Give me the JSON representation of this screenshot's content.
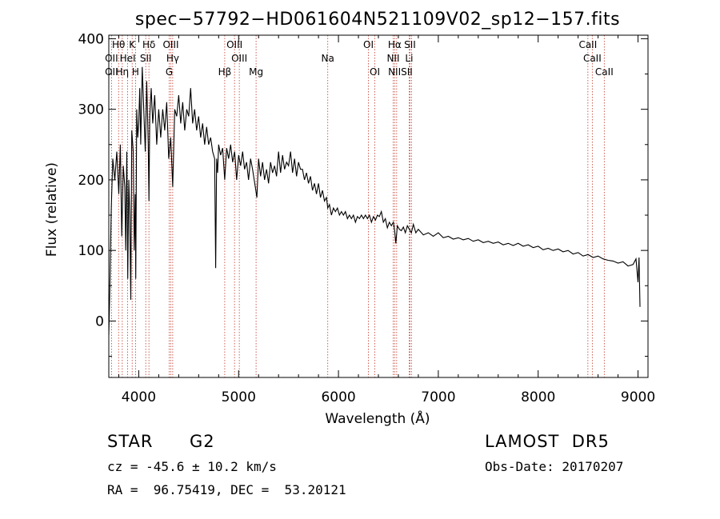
{
  "chart_data": {
    "type": "line",
    "title": "spec−57792−HD061604N521109V02_sp12−157.fits",
    "xlabel": "Wavelength (Å)",
    "ylabel": "Flux (relative)",
    "xlim": [
      3700,
      9100
    ],
    "ylim": [
      -80,
      405
    ],
    "xticks": [
      4000,
      5000,
      6000,
      7000,
      8000,
      9000
    ],
    "yticks": [
      0,
      100,
      200,
      300,
      400
    ],
    "grid": false,
    "line_color": "#000000",
    "marker_color": "#c0392b",
    "series": [
      {
        "x": [
          3700,
          3710,
          3725,
          3740,
          3760,
          3780,
          3800,
          3815,
          3830,
          3845,
          3860,
          3870,
          3880,
          3890,
          3900,
          3910,
          3920,
          3930,
          3945,
          3955,
          3965,
          3970,
          3980,
          3990,
          4000,
          4010,
          4020,
          4035,
          4050,
          4065,
          4080,
          4095,
          4102,
          4110,
          4125,
          4140,
          4160,
          4180,
          4200,
          4220,
          4240,
          4260,
          4280,
          4300,
          4320,
          4340,
          4360,
          4380,
          4400,
          4420,
          4440,
          4460,
          4480,
          4500,
          4520,
          4540,
          4560,
          4580,
          4600,
          4620,
          4640,
          4660,
          4680,
          4700,
          4720,
          4740,
          4760,
          4770,
          4780,
          4790,
          4800,
          4820,
          4840,
          4861,
          4880,
          4900,
          4920,
          4940,
          4960,
          4980,
          5000,
          5020,
          5040,
          5060,
          5080,
          5100,
          5120,
          5140,
          5167,
          5183,
          5200,
          5220,
          5240,
          5260,
          5280,
          5300,
          5320,
          5340,
          5360,
          5380,
          5400,
          5420,
          5440,
          5460,
          5480,
          5500,
          5520,
          5540,
          5560,
          5580,
          5600,
          5620,
          5640,
          5660,
          5680,
          5700,
          5720,
          5740,
          5760,
          5780,
          5800,
          5820,
          5840,
          5860,
          5880,
          5893,
          5910,
          5930,
          5950,
          5970,
          5990,
          6010,
          6030,
          6050,
          6070,
          6090,
          6110,
          6130,
          6150,
          6170,
          6190,
          6210,
          6230,
          6250,
          6270,
          6290,
          6310,
          6330,
          6350,
          6370,
          6390,
          6410,
          6430,
          6450,
          6470,
          6490,
          6510,
          6530,
          6550,
          6563,
          6575,
          6590,
          6610,
          6630,
          6650,
          6670,
          6690,
          6710,
          6730,
          6750,
          6775,
          6800,
          6850,
          6900,
          6950,
          7000,
          7050,
          7100,
          7150,
          7200,
          7250,
          7300,
          7350,
          7400,
          7450,
          7500,
          7550,
          7600,
          7650,
          7700,
          7750,
          7800,
          7850,
          7900,
          7950,
          8000,
          8050,
          8100,
          8150,
          8200,
          8250,
          8300,
          8350,
          8400,
          8450,
          8500,
          8550,
          8600,
          8650,
          8700,
          8750,
          8800,
          8850,
          8900,
          8950,
          8980,
          9000,
          9010,
          9020
        ],
        "y": [
          -20,
          40,
          160,
          230,
          200,
          240,
          180,
          250,
          120,
          220,
          190,
          100,
          240,
          60,
          200,
          150,
          30,
          270,
          240,
          100,
          180,
          60,
          300,
          260,
          280,
          330,
          250,
          360,
          300,
          240,
          340,
          250,
          170,
          290,
          330,
          280,
          320,
          250,
          300,
          260,
          300,
          270,
          310,
          230,
          260,
          190,
          300,
          290,
          320,
          280,
          310,
          270,
          300,
          290,
          330,
          280,
          300,
          270,
          290,
          260,
          280,
          250,
          275,
          250,
          260,
          240,
          230,
          75,
          230,
          210,
          250,
          235,
          245,
          200,
          245,
          230,
          250,
          225,
          240,
          200,
          235,
          220,
          240,
          215,
          225,
          200,
          230,
          215,
          190,
          175,
          230,
          205,
          225,
          200,
          215,
          195,
          225,
          210,
          220,
          205,
          240,
          210,
          235,
          215,
          225,
          220,
          240,
          210,
          230,
          205,
          225,
          215,
          215,
          200,
          210,
          195,
          205,
          185,
          195,
          180,
          195,
          175,
          185,
          170,
          175,
          160,
          165,
          150,
          160,
          155,
          160,
          150,
          155,
          150,
          155,
          145,
          150,
          145,
          150,
          140,
          148,
          145,
          150,
          145,
          150,
          145,
          150,
          140,
          148,
          143,
          150,
          148,
          155,
          140,
          145,
          132,
          140,
          135,
          140,
          128,
          110,
          135,
          130,
          128,
          133,
          125,
          135,
          130,
          125,
          137,
          125,
          130,
          122,
          125,
          120,
          125,
          118,
          120,
          116,
          118,
          115,
          117,
          113,
          115,
          111,
          113,
          110,
          112,
          108,
          110,
          107,
          110,
          106,
          108,
          104,
          106,
          101,
          103,
          100,
          102,
          98,
          100,
          95,
          97,
          92,
          94,
          90,
          92,
          88,
          86,
          85,
          82,
          84,
          78,
          80,
          88,
          55,
          90,
          20
        ]
      }
    ],
    "line_markers": [
      {
        "label": "OII",
        "x": 3727
      },
      {
        "label": "Hθ",
        "x": 3798
      },
      {
        "label": "Hη",
        "x": 3835
      },
      {
        "label": "HeI",
        "x": 3889
      },
      {
        "label": "K",
        "x": 3934
      },
      {
        "label": "H",
        "x": 3968
      },
      {
        "label": "SII",
        "x": 4070
      },
      {
        "label": "Hδ",
        "x": 4102
      },
      {
        "label": "OIII",
        "x": 4321
      },
      {
        "label": "Hγ",
        "x": 4340
      },
      {
        "label": "G",
        "x": 4305
      },
      {
        "label": "Hβ",
        "x": 4861
      },
      {
        "label": "OIII",
        "x": 4959
      },
      {
        "label": "OIII",
        "x": 5007
      },
      {
        "label": "Mg",
        "x": 5175
      },
      {
        "label": "Na",
        "x": 5893
      },
      {
        "label": "OI",
        "x": 6300
      },
      {
        "label": "OI",
        "x": 6364
      },
      {
        "label": "NII",
        "x": 6548
      },
      {
        "label": "Hα",
        "x": 6563
      },
      {
        "label": "NII",
        "x": 6583
      },
      {
        "label": "Li",
        "x": 6708
      },
      {
        "label": "SII",
        "x": 6716
      },
      {
        "label": "SII",
        "x": 6731
      },
      {
        "label": "CaII",
        "x": 8498
      },
      {
        "label": "CaII",
        "x": 8542
      },
      {
        "label": "CaII",
        "x": 8662
      }
    ],
    "marker_labels": [
      {
        "text": "Hθ",
        "x": 3798
      },
      {
        "text": "K",
        "x": 3934
      },
      {
        "text": "Hδ",
        "x": 4102
      },
      {
        "text": "OIII",
        "x": 4321
      },
      {
        "text": "OIII",
        "x": 4959
      },
      {
        "text": "OI",
        "x": 6300
      },
      {
        "text": "Hα",
        "x": 6563
      },
      {
        "text": "SII",
        "x": 6716
      },
      {
        "text": "CaII",
        "x": 8498
      },
      {
        "text": "OII",
        "x": 3727
      },
      {
        "text": "HeI",
        "x": 3889
      },
      {
        "text": "SII",
        "x": 4070
      },
      {
        "text": "Hγ",
        "x": 4340
      },
      {
        "text": "OIII",
        "x": 5007
      },
      {
        "text": "Na",
        "x": 5893
      },
      {
        "text": "NII",
        "x": 6548
      },
      {
        "text": "Li",
        "x": 6708
      },
      {
        "text": "CaII",
        "x": 8542
      },
      {
        "text": "OII",
        "x": 3727
      },
      {
        "text": "Hη",
        "x": 3835
      },
      {
        "text": "H",
        "x": 3968
      },
      {
        "text": "G",
        "x": 4305
      },
      {
        "text": "Hβ",
        "x": 4861
      },
      {
        "text": "Mg",
        "x": 5175
      },
      {
        "text": "OI",
        "x": 6364
      },
      {
        "text": "NIISII",
        "x": 6620
      },
      {
        "text": "CaII",
        "x": 8662
      }
    ]
  },
  "info": {
    "object_class": "STAR",
    "subclass": "G2",
    "survey": "LAMOST  DR5",
    "redshift_line": "cz = -45.6 ± 10.2 km/s",
    "obs_date_line": "Obs-Date: 20170207",
    "coords_line": "RA =  96.75419, DEC =  53.20121"
  }
}
